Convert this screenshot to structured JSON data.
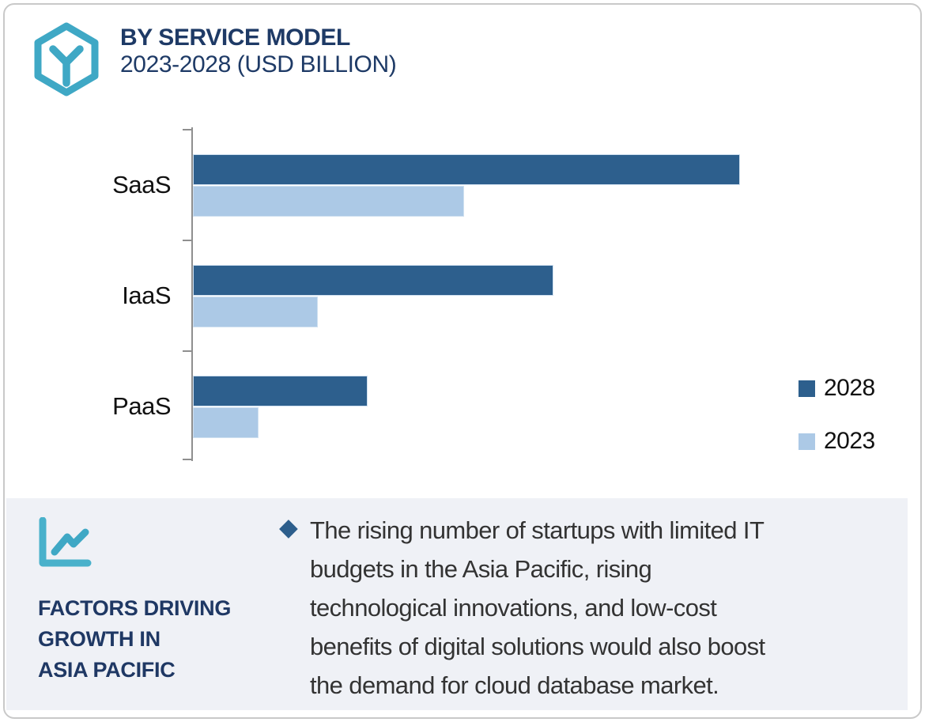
{
  "header": {
    "title": "BY SERVICE MODEL",
    "subtitle": "2023-2028 (USD BILLION)"
  },
  "chart_data": {
    "type": "bar",
    "orientation": "horizontal",
    "title": "BY SERVICE MODEL",
    "subtitle": "2023-2028 (USD BILLION)",
    "units": "USD Billion (value axis not labeled; values are relative estimates from bar lengths, longest bar = 100)",
    "categories": [
      "SaaS",
      "IaaS",
      "PaaS"
    ],
    "series": [
      {
        "name": "2028",
        "color": "#2d5f8d",
        "values": [
          100,
          65.9,
          31.9
        ]
      },
      {
        "name": "2023",
        "color": "#acc9e6",
        "values": [
          49.6,
          22.8,
          12.0
        ]
      }
    ],
    "grid": false,
    "value_axis_visible": false,
    "legend_position": "right"
  },
  "legend": {
    "items": [
      {
        "label": "2028",
        "color": "#2d5f8d"
      },
      {
        "label": "2023",
        "color": "#acc9e6"
      }
    ]
  },
  "factors": {
    "heading_lines": [
      "FACTORS DRIVING",
      "GROWTH IN",
      "ASIA PACIFIC"
    ],
    "bullet_glyph": "◆",
    "bullet_lines": [
      "The rising number of startups with limited IT",
      "budgets in the Asia Pacific, rising",
      "technological innovations, and low-cost",
      "benefits of digital solutions would also boost",
      "the demand for cloud database market."
    ]
  },
  "colors": {
    "navy_text": "#1e3a66",
    "teal_icon": "#3fa8c5",
    "band_background": "#eff1f6",
    "axis": "#8f8f8f",
    "bullet_diamond": "#2d5e8c"
  }
}
